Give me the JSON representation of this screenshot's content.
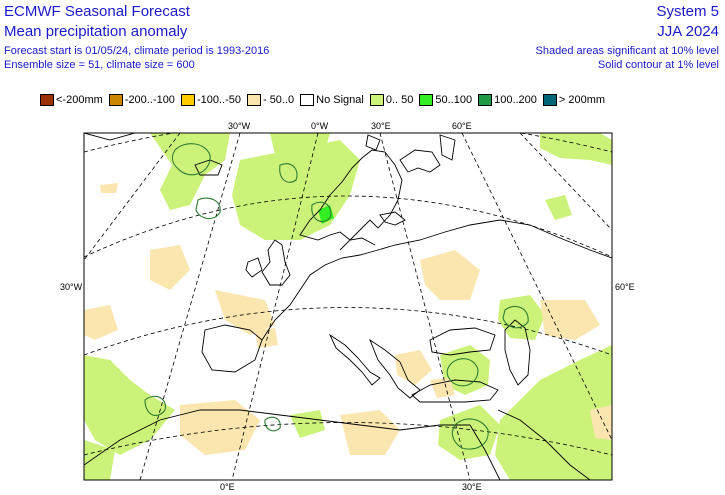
{
  "header": {
    "title": "ECMWF Seasonal Forecast",
    "subtitle": "Mean precipitation anomaly",
    "forecast_line": "Forecast start is 01/05/24, climate period is 1993-2016",
    "ensemble_line": "Ensemble size = 51, climate size = 600",
    "system": "System 5",
    "season": "JJA 2024",
    "sig_shaded": "Shaded areas significant at 10% level",
    "sig_contour": "Solid contour at 1% level"
  },
  "legend": [
    {
      "label": "<-200mm",
      "color": "#993300"
    },
    {
      "label": "-200..-100",
      "color": "#cc8800"
    },
    {
      "label": "-100..-50",
      "color": "#ffcc00"
    },
    {
      "label": "- 50..0",
      "color": "#fbe6b0"
    },
    {
      "label": "No Signal",
      "color": "#ffffff"
    },
    {
      "label": "0.. 50",
      "color": "#ccf27a"
    },
    {
      "label": "50..100",
      "color": "#33ee22"
    },
    {
      "label": "100..200",
      "color": "#229944"
    },
    {
      "label": "> 200mm",
      "color": "#006677"
    }
  ],
  "axis_labels": {
    "top": [
      "30°W",
      "0°W",
      "30°E",
      "60°E"
    ],
    "left": "30°W",
    "right": "60°E",
    "bottom": [
      "0°E",
      "30°E"
    ]
  },
  "colors": {
    "wet_light": "#ccf27a",
    "wet_mid": "#33ee22",
    "dry_light": "#fbe6b0",
    "coast": "#000000",
    "contour": "#2e7d32"
  }
}
